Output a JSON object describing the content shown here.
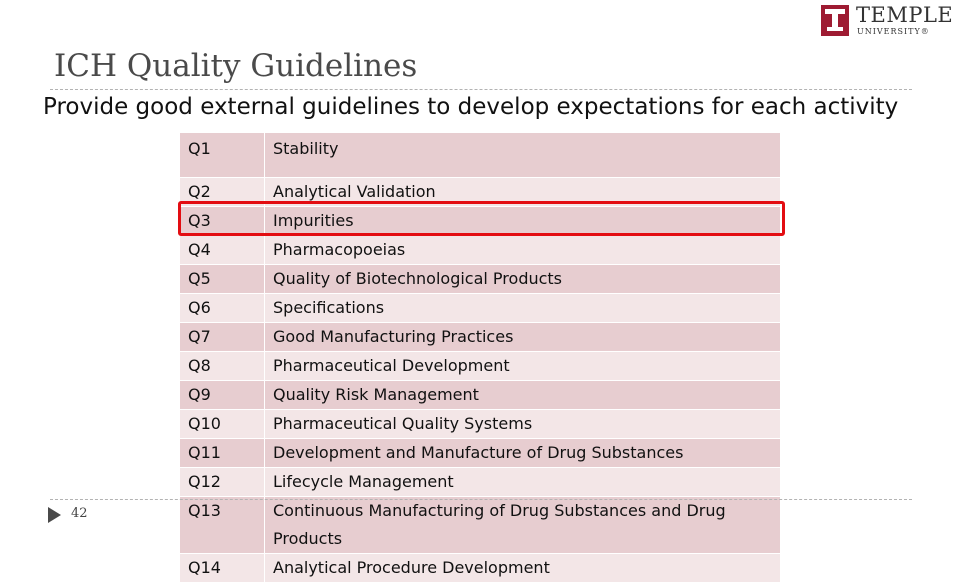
{
  "logo": {
    "name": "TEMPLE",
    "sub": "UNIVERSITY®"
  },
  "title": "ICH Quality Guidelines",
  "subtitle": "Provide good external guidelines to develop expectations for each activity",
  "page_number": "42",
  "table": {
    "rows": [
      {
        "code": "Q1",
        "name": "Stability"
      },
      {
        "code": "Q2",
        "name": "Analytical Validation"
      },
      {
        "code": "Q3",
        "name": "Impurities",
        "highlighted": true
      },
      {
        "code": "Q4",
        "name": "Pharmacopoeias"
      },
      {
        "code": "Q5",
        "name": "Quality of Biotechnological Products"
      },
      {
        "code": "Q6",
        "name": "Specifications"
      },
      {
        "code": "Q7",
        "name": "Good Manufacturing Practices"
      },
      {
        "code": "Q8",
        "name": "Pharmaceutical Development"
      },
      {
        "code": "Q9",
        "name": "Quality Risk Management"
      },
      {
        "code": "Q10",
        "name": "Pharmaceutical Quality Systems"
      },
      {
        "code": "Q11",
        "name": "Development and Manufacture of Drug Substances"
      },
      {
        "code": "Q12",
        "name": "Lifecycle Management"
      },
      {
        "code": "Q13",
        "name": "Continuous Manufacturing of Drug Substances and Drug Products"
      },
      {
        "code": "Q14",
        "name": "Analytical Procedure Development"
      }
    ]
  },
  "colors": {
    "highlight": "#e30d12",
    "brand": "#9e1b32",
    "row_dark": "#e7cdd0",
    "row_light": "#f3e6e7"
  }
}
